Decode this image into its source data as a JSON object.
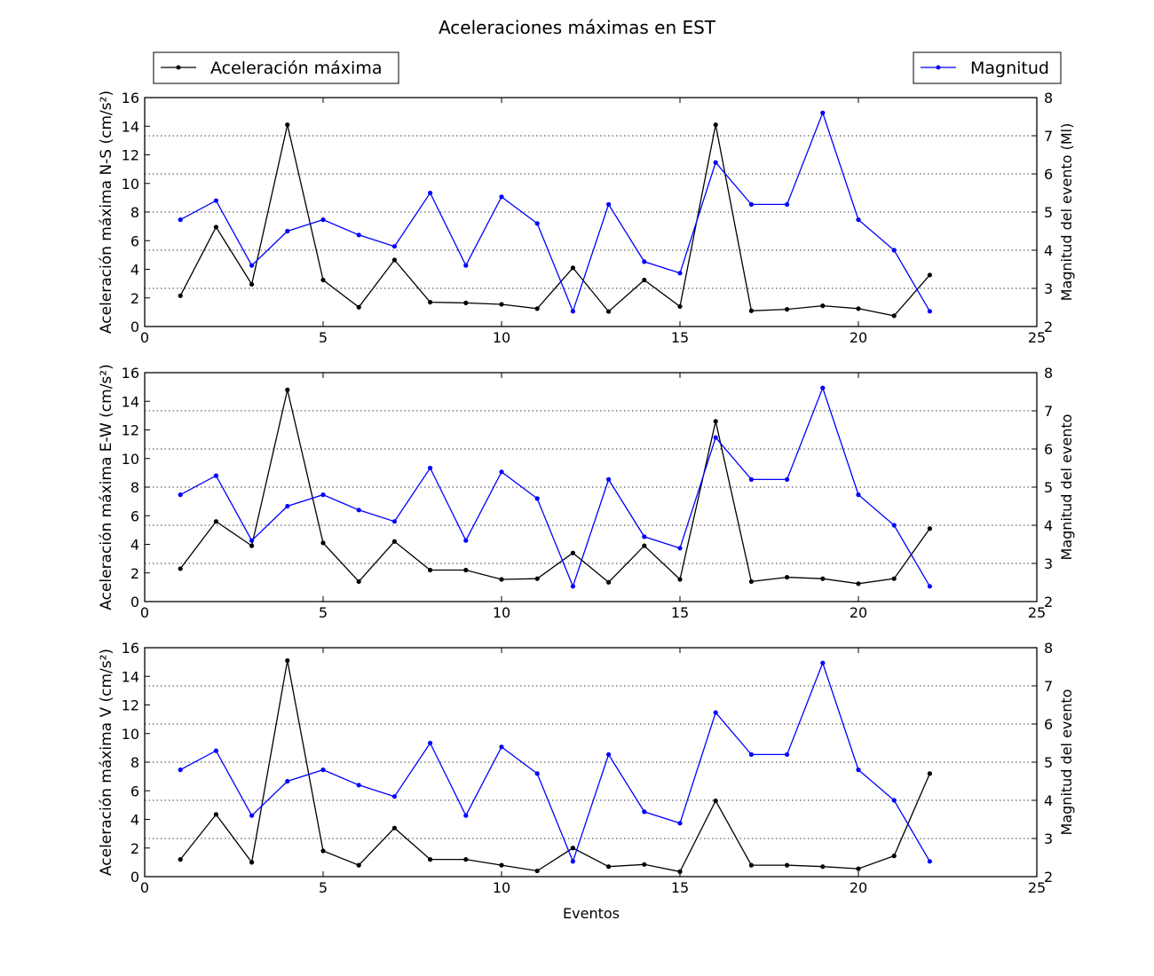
{
  "title": "Aceleraciones máximas en EST",
  "legend": {
    "left": {
      "label": "Aceleración máxima",
      "color": "#000000"
    },
    "right": {
      "label": "Magnitud",
      "color": "#0000ff"
    }
  },
  "xlabel": "Eventos",
  "chart_data": [
    {
      "type": "line",
      "panel": "N-S",
      "ylabel_left": "Aceleración máxima N-S (cm/s²)",
      "ylabel_right": "Magnitud del evento (Ml)",
      "xlim": [
        0,
        25
      ],
      "xticks": [
        0,
        5,
        10,
        15,
        20,
        25
      ],
      "ylim_left": [
        0,
        16
      ],
      "yticks_left": [
        0,
        2,
        4,
        6,
        8,
        10,
        12,
        14,
        16
      ],
      "ylim_right": [
        2,
        8
      ],
      "yticks_right": [
        2,
        3,
        4,
        5,
        6,
        7,
        8
      ],
      "x": [
        1,
        2,
        3,
        4,
        5,
        6,
        7,
        8,
        9,
        10,
        11,
        12,
        13,
        14,
        15,
        16,
        17,
        18,
        19,
        20,
        21,
        22
      ],
      "series": [
        {
          "name": "Aceleración máxima",
          "axis": "left",
          "color": "#000000",
          "values": [
            2.15,
            6.95,
            2.95,
            14.1,
            3.25,
            1.35,
            4.65,
            1.7,
            1.65,
            1.55,
            1.25,
            4.1,
            1.05,
            3.25,
            1.4,
            14.1,
            1.1,
            1.2,
            1.45,
            1.25,
            0.75,
            3.6
          ]
        },
        {
          "name": "Magnitud",
          "axis": "right",
          "color": "#0000ff",
          "values": [
            4.8,
            5.3,
            3.6,
            4.5,
            4.8,
            4.4,
            4.1,
            5.5,
            3.6,
            5.4,
            4.7,
            2.4,
            5.2,
            3.7,
            3.4,
            6.3,
            5.2,
            5.2,
            7.6,
            4.8,
            4.0,
            2.4
          ]
        }
      ]
    },
    {
      "type": "line",
      "panel": "E-W",
      "ylabel_left": "Aceleración máxima E-W (cm/s²)",
      "ylabel_right": "Magnitud del evento",
      "xlim": [
        0,
        25
      ],
      "xticks": [
        0,
        5,
        10,
        15,
        20,
        25
      ],
      "ylim_left": [
        0,
        16
      ],
      "yticks_left": [
        0,
        2,
        4,
        6,
        8,
        10,
        12,
        14,
        16
      ],
      "ylim_right": [
        2,
        8
      ],
      "yticks_right": [
        2,
        3,
        4,
        5,
        6,
        7,
        8
      ],
      "x": [
        1,
        2,
        3,
        4,
        5,
        6,
        7,
        8,
        9,
        10,
        11,
        12,
        13,
        14,
        15,
        16,
        17,
        18,
        19,
        20,
        21,
        22
      ],
      "series": [
        {
          "name": "Aceleración máxima",
          "axis": "left",
          "color": "#000000",
          "values": [
            2.3,
            5.6,
            3.9,
            14.8,
            4.1,
            1.4,
            4.2,
            2.2,
            2.2,
            1.55,
            1.6,
            3.4,
            1.35,
            3.9,
            1.55,
            12.6,
            1.4,
            1.7,
            1.6,
            1.25,
            1.6,
            5.1
          ]
        },
        {
          "name": "Magnitud",
          "axis": "right",
          "color": "#0000ff",
          "values": [
            4.8,
            5.3,
            3.6,
            4.5,
            4.8,
            4.4,
            4.1,
            5.5,
            3.6,
            5.4,
            4.7,
            2.4,
            5.2,
            3.7,
            3.4,
            6.3,
            5.2,
            5.2,
            7.6,
            4.8,
            4.0,
            2.4
          ]
        }
      ]
    },
    {
      "type": "line",
      "panel": "V",
      "ylabel_left": "Aceleración máxima V (cm/s²)",
      "ylabel_right": "Magnitud del evento",
      "xlim": [
        0,
        25
      ],
      "xticks": [
        0,
        5,
        10,
        15,
        20,
        25
      ],
      "ylim_left": [
        0,
        16
      ],
      "yticks_left": [
        0,
        2,
        4,
        6,
        8,
        10,
        12,
        14,
        16
      ],
      "ylim_right": [
        2,
        8
      ],
      "yticks_right": [
        2,
        3,
        4,
        5,
        6,
        7,
        8
      ],
      "x": [
        1,
        2,
        3,
        4,
        5,
        6,
        7,
        8,
        9,
        10,
        11,
        12,
        13,
        14,
        15,
        16,
        17,
        18,
        19,
        20,
        21,
        22
      ],
      "series": [
        {
          "name": "Aceleración máxima",
          "axis": "left",
          "color": "#000000",
          "values": [
            1.2,
            4.35,
            1.0,
            15.1,
            1.8,
            0.8,
            3.4,
            1.2,
            1.2,
            0.8,
            0.4,
            2.0,
            0.7,
            0.85,
            0.35,
            5.3,
            0.8,
            0.8,
            0.7,
            0.55,
            1.45,
            7.2
          ]
        },
        {
          "name": "Magnitud",
          "axis": "right",
          "color": "#0000ff",
          "values": [
            4.8,
            5.3,
            3.6,
            4.5,
            4.8,
            4.4,
            4.1,
            5.5,
            3.6,
            5.4,
            4.7,
            2.4,
            5.2,
            3.7,
            3.4,
            6.3,
            5.2,
            5.2,
            7.6,
            4.8,
            4.0,
            2.4
          ]
        }
      ]
    }
  ]
}
